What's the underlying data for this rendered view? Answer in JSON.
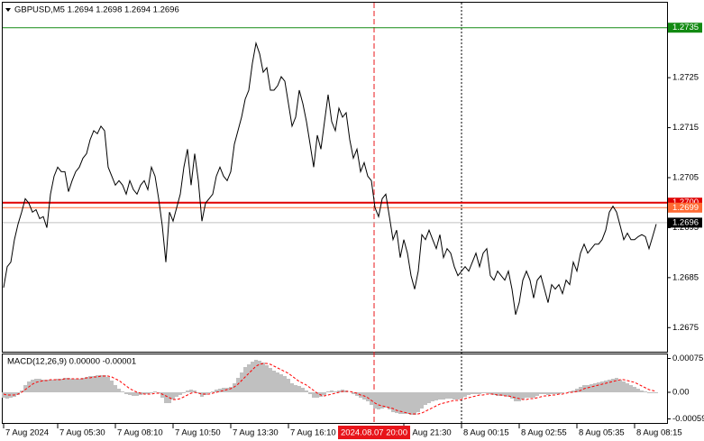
{
  "chart_data": [
    {
      "type": "line",
      "title": "GBPUSD,M5 1.2694 1.2698 1.2694 1.2696",
      "series": [
        {
          "color": "#000000",
          "values": [
            1.2683,
            1.26872,
            1.26881,
            1.26926,
            1.26957,
            1.26981,
            1.27008,
            1.26999,
            1.26981,
            1.26986,
            1.26968,
            1.26972,
            1.2695,
            1.27017,
            1.27053,
            1.27071,
            1.27062,
            1.27062,
            1.27022,
            1.27044,
            1.27062,
            1.27071,
            1.27089,
            1.27098,
            1.27126,
            1.27144,
            1.27138,
            1.27153,
            1.27144,
            1.27071,
            1.27053,
            1.27035,
            1.27044,
            1.27035,
            1.27017,
            1.27044,
            1.27026,
            1.27017,
            1.27035,
            1.27044,
            1.27026,
            1.27071,
            1.27053,
            1.27008,
            1.26954,
            1.26881,
            1.26981,
            1.26963,
            1.2699,
            1.27017,
            1.27071,
            1.27107,
            1.27035,
            1.27098,
            1.27044,
            1.26963,
            1.26999,
            1.27008,
            1.27017,
            1.27053,
            1.27071,
            1.27053,
            1.27044,
            1.27062,
            1.27117,
            1.27144,
            1.27171,
            1.27207,
            1.27225,
            1.27279,
            1.27319,
            1.27298,
            1.27261,
            1.2727,
            1.27225,
            1.27225,
            1.27234,
            1.27252,
            1.27243,
            1.27198,
            1.27153,
            1.27171,
            1.27225,
            1.27198,
            1.27162,
            1.27117,
            1.27071,
            1.27135,
            1.27107,
            1.27162,
            1.27216,
            1.27162,
            1.27144,
            1.27189,
            1.27171,
            1.2718,
            1.27126,
            1.27089,
            1.27107,
            1.27062,
            1.2708,
            1.27053,
            1.27044,
            1.2699,
            1.26972,
            1.27008,
            1.27017,
            1.26972,
            1.26926,
            1.26945,
            1.2689,
            1.26926,
            1.26899,
            1.26854,
            1.26827,
            1.26863,
            1.26936,
            1.26926,
            1.26945,
            1.26926,
            1.26908,
            1.26936,
            1.2689,
            1.26908,
            1.26899,
            1.26872,
            1.26854,
            1.26863,
            1.26872,
            1.26863,
            1.26881,
            1.26899,
            1.26872,
            1.26899,
            1.26908,
            1.26854,
            1.26845,
            1.26863,
            1.26854,
            1.26845,
            1.26863,
            1.26827,
            1.26776,
            1.268,
            1.26845,
            1.26863,
            1.26845,
            1.26809,
            1.26845,
            1.26854,
            1.26827,
            1.268,
            1.26836,
            1.26827,
            1.26836,
            1.26818,
            1.26845,
            1.26836,
            1.26881,
            1.26863,
            1.26899,
            1.26917,
            1.26899,
            1.26908,
            1.26917,
            1.26917,
            1.26926,
            1.26945,
            1.26981,
            1.26993,
            1.26981,
            1.26954,
            1.26926,
            1.26939,
            1.26926,
            1.26926,
            1.26932,
            1.26936,
            1.26932,
            1.26908,
            1.26932,
            1.26957
          ]
        }
      ],
      "xlim": [
        -0.25,
        184
      ],
      "xticks": [
        {
          "value": 0,
          "label": "7 Aug 2024"
        },
        {
          "value": 15,
          "label": "7 Aug 05:30"
        },
        {
          "value": 31,
          "label": "7 Aug 08:10"
        },
        {
          "value": 47,
          "label": "7 Aug 10:50"
        },
        {
          "value": 63,
          "label": "7 Aug 13:30"
        },
        {
          "value": 79,
          "label": "7 Aug 16:10"
        },
        {
          "value": 111,
          "label": "7 Aug 21:30"
        },
        {
          "value": 127,
          "label": "8 Aug 00:15"
        },
        {
          "value": 143,
          "label": "8 Aug 02:55"
        },
        {
          "value": 159,
          "label": "8 Aug 05:35"
        },
        {
          "value": 175,
          "label": "8 Aug 08:15"
        }
      ],
      "ylim": [
        1.267,
        1.274
      ],
      "yticks": [
        1.2725,
        1.2715,
        1.2705,
        1.2695,
        1.2685,
        1.2675
      ],
      "levels": [
        {
          "value": 1.2735,
          "color": "#138a13"
        },
        {
          "value": 1.27,
          "label": "1.2700",
          "color": "#e00000"
        },
        {
          "value": 1.2699,
          "color": "#ff6a33"
        }
      ],
      "current_price": 1.2696,
      "crosshair": {
        "x": 102.75,
        "label": "2024.08.07 20:00",
        "color": "#e8141a"
      },
      "day_separator": 127
    },
    {
      "type": "macd",
      "title": "MACD(12,26,9) 0.00000 -0.00001",
      "series": [
        {
          "type": "bar",
          "color": "#c0c0c0",
          "values": [
            -0.00012,
            -0.00014,
            -0.00012,
            -0.0001,
            -6e-05,
            4e-05,
            0.00016,
            0.00024,
            0.00028,
            0.0003,
            0.0003,
            0.00028,
            0.00028,
            0.00028,
            0.00028,
            0.0003,
            0.0003,
            0.00032,
            0.00032,
            0.0003,
            0.0003,
            0.0003,
            0.00032,
            0.00034,
            0.00036,
            0.00036,
            0.00038,
            0.00038,
            0.00038,
            0.00034,
            0.00026,
            0.00016,
            8e-05,
            2e-05,
            -4e-05,
            -6e-05,
            -8e-05,
            -8e-05,
            -6e-05,
            -4e-05,
            -4e-05,
            -2e-05,
            2e-05,
            -2e-05,
            -0.00012,
            -0.00024,
            -0.00024,
            -0.00016,
            -0.0001,
            -6e-05,
            -2e-05,
            4e-05,
            6e-05,
            4e-05,
            -2e-05,
            -0.0001,
            -6e-05,
            -2e-05,
            2e-05,
            6e-05,
            8e-05,
            0.0001,
            0.0001,
            0.00012,
            0.0002,
            0.00032,
            0.00044,
            0.00056,
            0.00062,
            0.00068,
            0.00072,
            0.0007,
            0.00066,
            0.0006,
            0.00054,
            0.00048,
            0.00044,
            0.0004,
            0.00036,
            0.0003,
            0.0002,
            0.00016,
            0.00014,
            0.0001,
            4e-05,
            -4e-05,
            -0.00012,
            -0.00012,
            -0.0001,
            -6e-05,
            2e-05,
            4e-05,
            2e-05,
            4e-05,
            6e-05,
            4e-05,
            0,
            -4e-05,
            -8e-05,
            -0.00012,
            -0.00016,
            -0.0002,
            -0.00028,
            -0.00036,
            -0.00038,
            -0.00036,
            -0.00034,
            -0.00038,
            -0.00044,
            -0.00046,
            -0.00048,
            -0.00048,
            -0.00048,
            -0.0005,
            -0.0005,
            -0.00044,
            -0.00036,
            -0.00028,
            -0.00024,
            -0.0002,
            -0.00018,
            -0.00016,
            -0.00016,
            -0.00014,
            -0.00014,
            -0.00016,
            -0.00016,
            -0.00014,
            -0.0001,
            -6e-05,
            -4e-05,
            -4e-05,
            -4e-05,
            -2e-05,
            -2e-05,
            -4e-05,
            -6e-05,
            -8e-05,
            -8e-05,
            -8e-05,
            -0.0001,
            -0.00014,
            -0.0002,
            -0.0002,
            -0.00016,
            -0.00012,
            -0.00012,
            -0.00012,
            -8e-05,
            -4e-05,
            -4e-05,
            -6e-05,
            -4e-05,
            -4e-05,
            -4e-05,
            -2e-05,
            0,
            2e-05,
            4e-05,
            8e-05,
            0.00012,
            0.00016,
            0.00016,
            0.00018,
            0.0002,
            0.00022,
            0.00024,
            0.00026,
            0.00028,
            0.0003,
            0.00032,
            0.00028,
            0.00024,
            0.0002,
            0.00016,
            0.00012,
            8e-05,
            4e-05,
            2e-05,
            -2e-05,
            -2e-05,
            -2e-05
          ]
        },
        {
          "type": "line",
          "color": "#ff0000",
          "values": [
            -4e-05,
            -6e-05,
            -6e-05,
            -6e-05,
            -4e-05,
            0,
            6e-05,
            0.00012,
            0.00018,
            0.00022,
            0.00024,
            0.00026,
            0.00026,
            0.00028,
            0.00028,
            0.00028,
            0.00028,
            0.0003,
            0.0003,
            0.0003,
            0.0003,
            0.0003,
            0.0003,
            0.00032,
            0.00032,
            0.00034,
            0.00034,
            0.00036,
            0.00036,
            0.00036,
            0.00034,
            0.0003,
            0.00026,
            0.0002,
            0.00014,
            8e-05,
            4e-05,
            0,
            -2e-05,
            -4e-05,
            -4e-05,
            -4e-05,
            -2e-05,
            -2e-05,
            -4e-05,
            -8e-05,
            -0.00012,
            -0.00016,
            -0.00016,
            -0.00014,
            -0.0001,
            -6e-05,
            -2e-05,
            0,
            -2e-05,
            -4e-05,
            -4e-05,
            -4e-05,
            -2e-05,
            0,
            2e-05,
            4e-05,
            6e-05,
            8e-05,
            0.00012,
            0.00018,
            0.00026,
            0.00034,
            0.00042,
            0.0005,
            0.00058,
            0.00062,
            0.00064,
            0.00064,
            0.00062,
            0.00058,
            0.00054,
            0.0005,
            0.00046,
            0.00042,
            0.00036,
            0.0003,
            0.00024,
            0.0002,
            0.00016,
            0.0001,
            4e-05,
            -2e-05,
            -6e-05,
            -8e-05,
            -6e-05,
            -4e-05,
            -2e-05,
            0,
            2e-05,
            2e-05,
            2e-05,
            0,
            -2e-05,
            -6e-05,
            -8e-05,
            -0.00012,
            -0.00018,
            -0.00024,
            -0.00028,
            -0.0003,
            -0.00032,
            -0.00034,
            -0.00036,
            -0.0004,
            -0.00042,
            -0.00044,
            -0.00046,
            -0.00048,
            -0.00048,
            -0.00048,
            -0.00046,
            -0.00042,
            -0.00038,
            -0.00034,
            -0.0003,
            -0.00026,
            -0.00024,
            -0.00022,
            -0.0002,
            -0.00018,
            -0.00018,
            -0.00016,
            -0.00014,
            -0.00012,
            -0.0001,
            -8e-05,
            -6e-05,
            -6e-05,
            -4e-05,
            -4e-05,
            -4e-05,
            -6e-05,
            -6e-05,
            -8e-05,
            -8e-05,
            -0.0001,
            -0.00012,
            -0.00014,
            -0.00016,
            -0.00016,
            -0.00014,
            -0.00014,
            -0.00012,
            -0.0001,
            -8e-05,
            -8e-05,
            -6e-05,
            -6e-05,
            -4e-05,
            -4e-05,
            -2e-05,
            0,
            0,
            2e-05,
            4e-05,
            8e-05,
            0.0001,
            0.00012,
            0.00014,
            0.00016,
            0.00018,
            0.0002,
            0.00022,
            0.00024,
            0.00026,
            0.00028,
            0.00028,
            0.00026,
            0.00024,
            0.00022,
            0.00018,
            0.00014,
            0.0001,
            6e-05,
            4e-05,
            2e-05
          ]
        }
      ],
      "xlim": [
        -0.25,
        184
      ],
      "ylim": [
        -0.0007,
        0.00084
      ],
      "yticks": [
        0.00075,
        {
          "value": 0,
          "label": "0.00"
        },
        -0.00059
      ]
    }
  ]
}
